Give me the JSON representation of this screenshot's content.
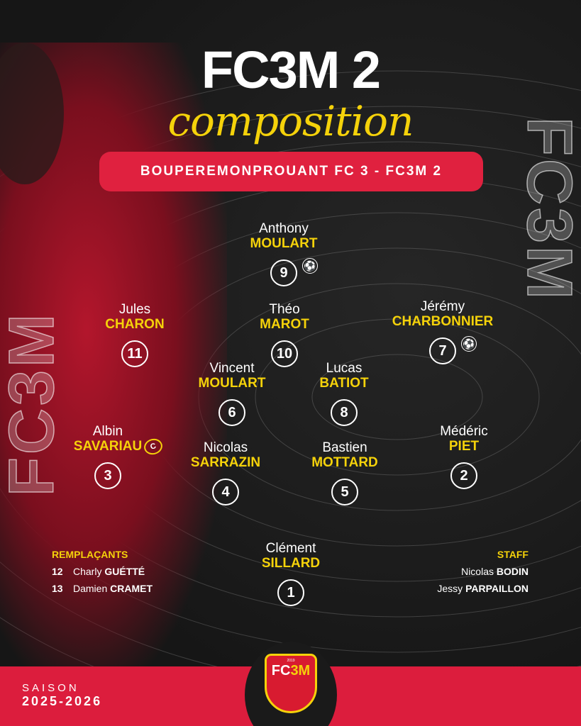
{
  "header": {
    "title": "FC3M 2",
    "subtitle": "composition",
    "match": "BOUPEREMONPROUANT FC 3 - FC3M 2"
  },
  "watermark": "FC3M",
  "players": [
    {
      "first": "Anthony",
      "last": "MOULART",
      "number": "9",
      "scorer": true
    },
    {
      "first": "Jules",
      "last": "CHARON",
      "number": "11"
    },
    {
      "first": "Théo",
      "last": "MAROT",
      "number": "10"
    },
    {
      "first": "Jérémy",
      "last": "CHARBONNIER",
      "number": "7",
      "scorer": true
    },
    {
      "first": "Vincent",
      "last": "MOULART",
      "number": "6"
    },
    {
      "first": "Lucas",
      "last": "BATIOT",
      "number": "8"
    },
    {
      "first": "Albin",
      "last": "SAVARIAU",
      "number": "3"
    },
    {
      "first": "Nicolas",
      "last": "SARRAZIN",
      "number": "4",
      "captain": "C"
    },
    {
      "first": "Bastien",
      "last": "MOTTARD",
      "number": "5"
    },
    {
      "first": "Médéric",
      "last": "PIET",
      "number": "2"
    },
    {
      "first": "Clément",
      "last": "SILLARD",
      "number": "1"
    }
  ],
  "substitutes": {
    "title": "REMPLAÇANTS",
    "items": [
      {
        "number": "12",
        "first": "Charly",
        "last": "GUÉTTÉ"
      },
      {
        "number": "13",
        "first": "Damien",
        "last": "CRAMET"
      }
    ]
  },
  "staff": {
    "title": "STAFF",
    "items": [
      {
        "first": "Nicolas",
        "last": "BODIN"
      },
      {
        "first": "Jessy",
        "last": "PARPAILLON"
      }
    ]
  },
  "footer": {
    "season_label": "SAISON",
    "season": "2025-2026",
    "crest_year": "2019",
    "crest_name_a": "FC",
    "crest_name_b": "3M"
  },
  "icons": {
    "scorer": "soccer-ball-icon",
    "captain": "captain-armband-icon"
  },
  "colors": {
    "accent": "#f5d20a",
    "red": "#dc1d3d",
    "background": "#1a1a1a"
  }
}
